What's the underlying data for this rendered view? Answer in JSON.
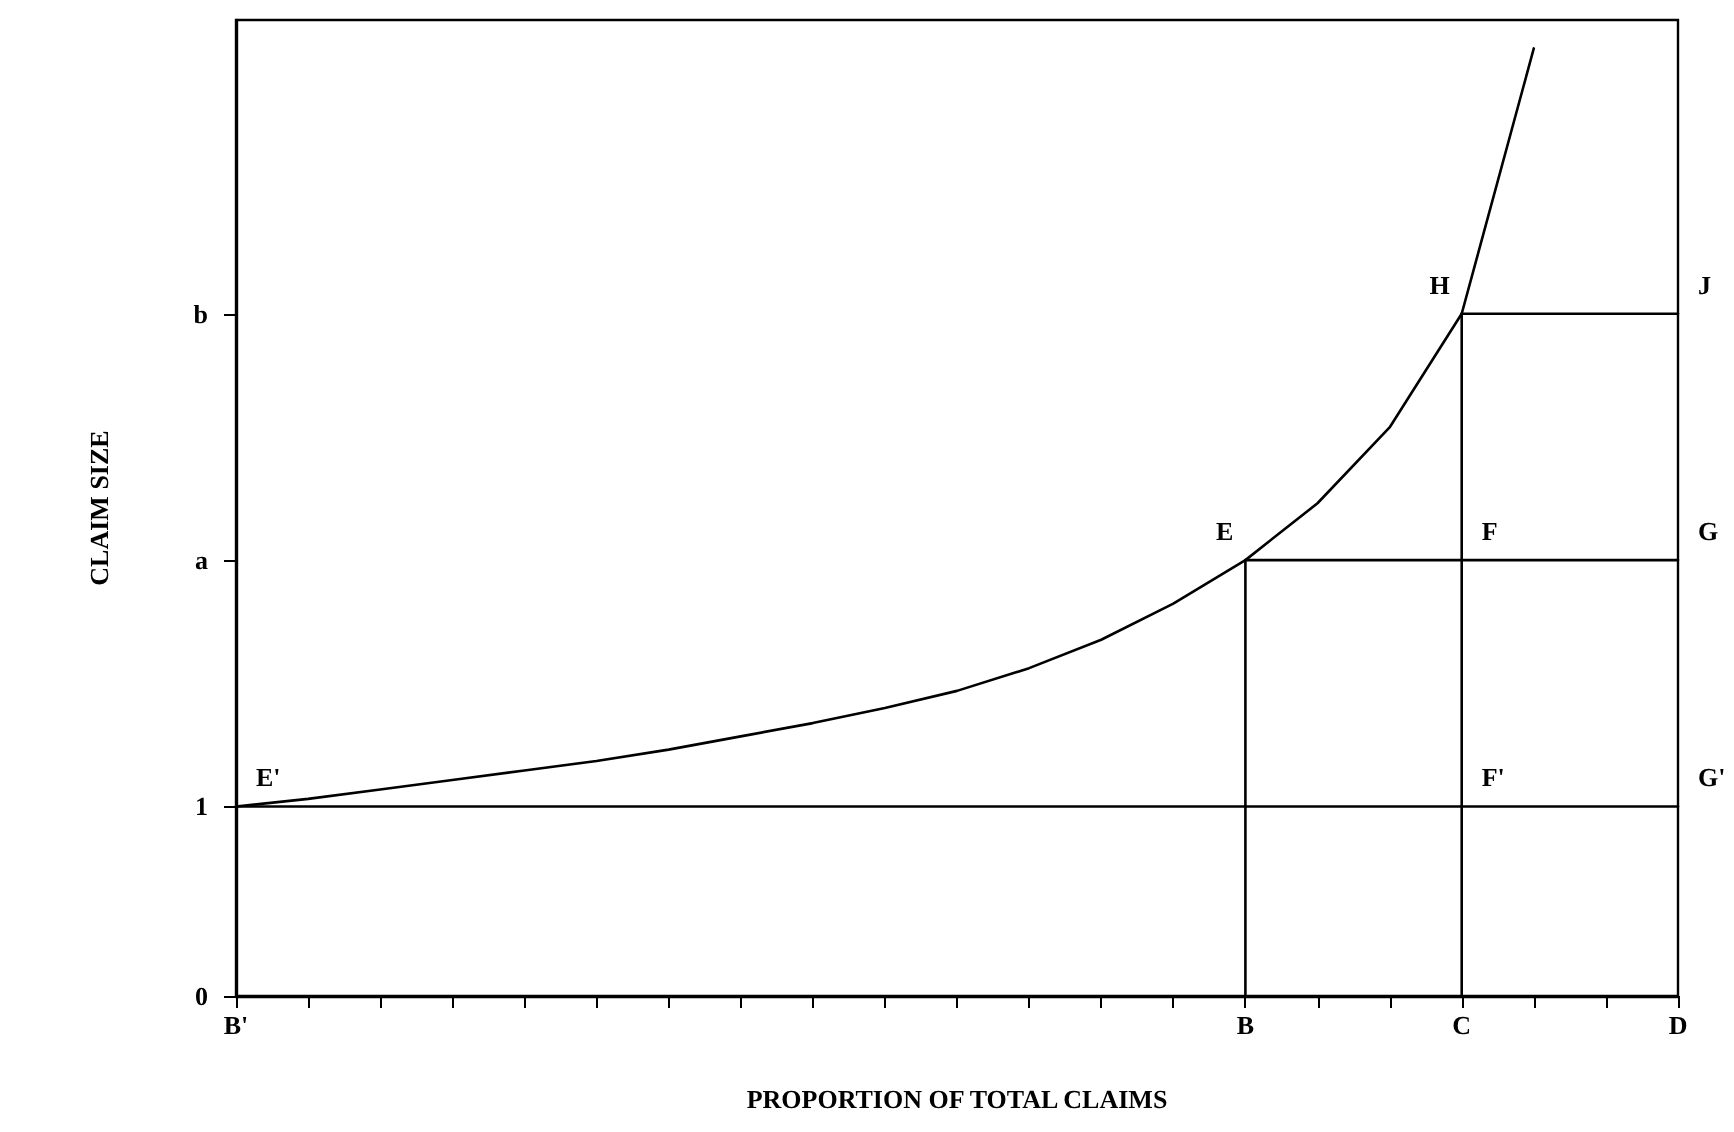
{
  "chart_data": {
    "type": "line",
    "xlabel": "PROPORTION OF TOTAL CLAIMS",
    "ylabel": "CLAIM SIZE",
    "categories": [
      "B'",
      null,
      null,
      null,
      null,
      null,
      null,
      null,
      null,
      null,
      null,
      null,
      null,
      null,
      "B",
      null,
      null,
      "C",
      null,
      null,
      "D"
    ],
    "ylim": [
      0,
      5.15
    ],
    "yticks": [
      0,
      1,
      {
        "value": 2.3,
        "label": "a"
      },
      {
        "value": 3.6,
        "label": "b"
      }
    ],
    "grid": false,
    "marker": "none",
    "line_style": "solid",
    "series": [
      {
        "color": "#000000",
        "values": [
          1,
          1.04,
          1.09,
          1.14,
          1.19,
          1.24,
          1.3,
          1.37,
          1.44,
          1.52,
          1.61,
          1.73,
          1.88,
          2.07,
          2.3,
          2.6,
          3,
          3.6,
          5,
          null,
          null
        ]
      },
      {
        "color": "#000000",
        "x": [
          "B'",
          "D"
        ],
        "values": [
          1,
          1
        ]
      },
      {
        "color": "#000000",
        "x": [
          "B",
          "D"
        ],
        "values": [
          2.3,
          2.3
        ]
      },
      {
        "color": "#000000",
        "x": [
          "C",
          "D"
        ],
        "values": [
          3.6,
          3.6
        ]
      },
      {
        "color": "#000000",
        "x": [
          "B",
          "B"
        ],
        "values": [
          0,
          2.3
        ]
      },
      {
        "color": "#000000",
        "x": [
          "C",
          "C"
        ],
        "values": [
          0,
          3.6
        ]
      }
    ],
    "annotations": [
      {
        "text": "E'",
        "x": "B'",
        "y": 1
      },
      {
        "text": "E",
        "x": "B",
        "y": 2.3
      },
      {
        "text": "F",
        "x": "C",
        "y": 2.3
      },
      {
        "text": "G",
        "x": "D",
        "y": 2.3
      },
      {
        "text": "H",
        "x": "C",
        "y": 3.6
      },
      {
        "text": "J",
        "x": "D",
        "y": 3.6
      },
      {
        "text": "F'",
        "x": "C",
        "y": 1
      },
      {
        "text": "G'",
        "x": "D",
        "y": 1
      }
    ]
  }
}
